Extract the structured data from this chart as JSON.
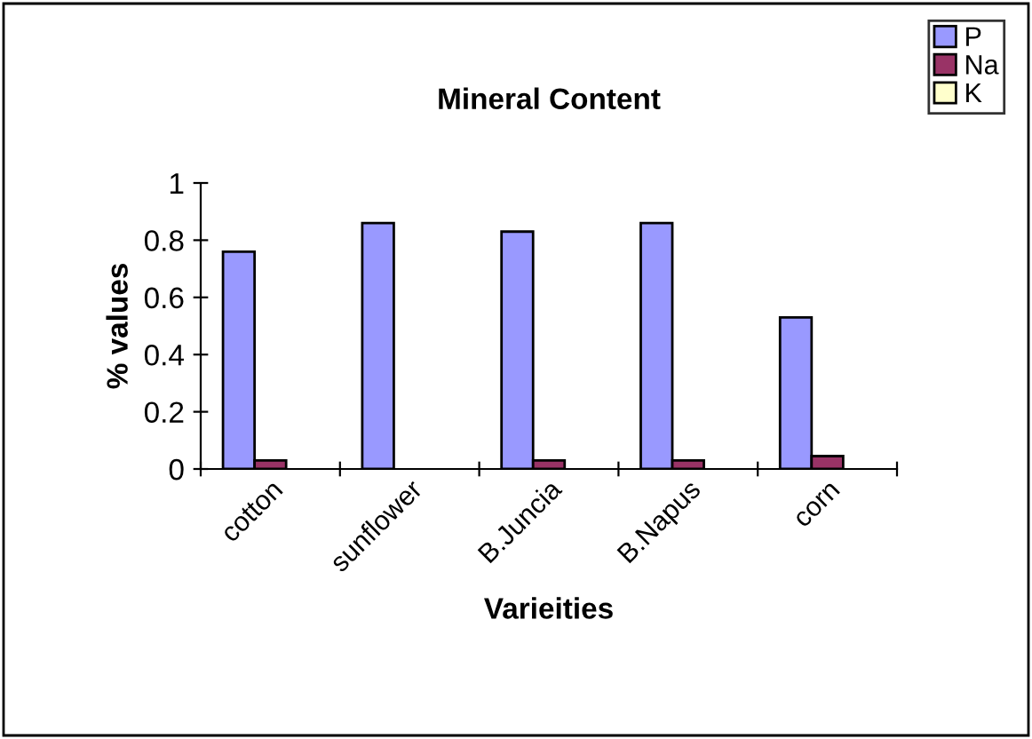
{
  "chart_data": {
    "type": "bar",
    "title": "Mineral Content",
    "xlabel": "Varieities",
    "ylabel": "% values",
    "categories": [
      "cotton",
      "sunflower",
      "B.Juncia",
      "B.Napus",
      "corn"
    ],
    "series": [
      {
        "name": "P",
        "color": "#9999ff",
        "values": [
          0.76,
          0.86,
          0.83,
          0.86,
          0.53
        ]
      },
      {
        "name": "Na",
        "color": "#993366",
        "values": [
          0.03,
          null,
          0.03,
          0.03,
          0.045
        ]
      },
      {
        "name": "K",
        "color": "#ffffcc",
        "values": [
          null,
          null,
          null,
          null,
          null
        ]
      }
    ],
    "ylim": [
      0,
      1
    ],
    "yticks": [
      0,
      0.2,
      0.4,
      0.6,
      0.8,
      1
    ],
    "grid": false,
    "legend": "top right"
  }
}
